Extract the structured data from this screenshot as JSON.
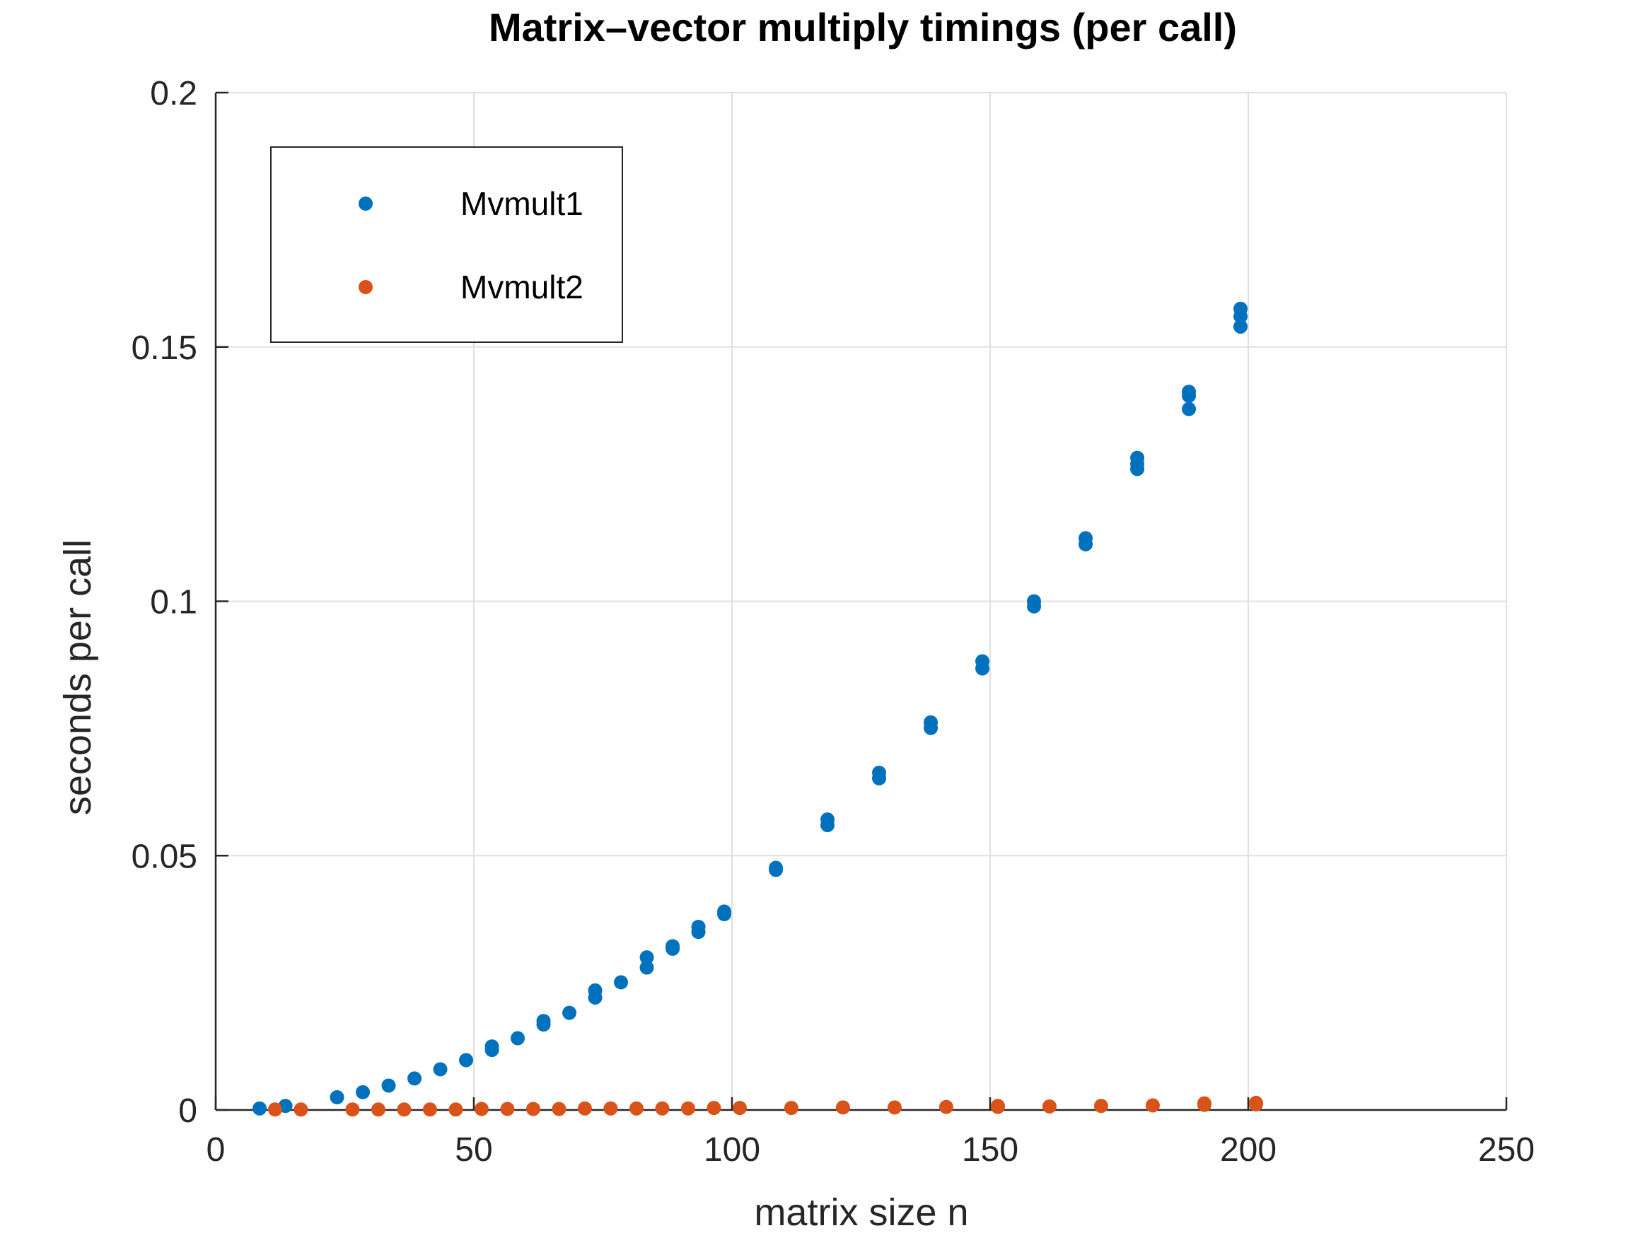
{
  "chart_data": {
    "type": "scatter",
    "title": "Matrix–vector multiply timings (per call)",
    "xlabel": "matrix size n",
    "ylabel": "seconds per call",
    "xlim": [
      0,
      250
    ],
    "ylim": [
      0,
      0.2
    ],
    "xticks": [
      0,
      50,
      100,
      150,
      200,
      250
    ],
    "xtick_labels": [
      "0",
      "50",
      "100",
      "150",
      "200",
      "250"
    ],
    "yticks": [
      0,
      0.05,
      0.1,
      0.15,
      0.2
    ],
    "ytick_labels": [
      "0",
      "0.05",
      "0.1",
      "0.15",
      "0.2"
    ],
    "grid": true,
    "legend_position": "top-left",
    "colors": {
      "axis": "#262626",
      "grid": "#e0e0e0",
      "background": "#ffffff"
    },
    "series": [
      {
        "name": "Mvmult1",
        "color": "#0072bd",
        "points": [
          [
            8.5,
            0.0003
          ],
          [
            13.5,
            0.0008
          ],
          [
            23.5,
            0.0025
          ],
          [
            28.5,
            0.0035
          ],
          [
            33.5,
            0.0048
          ],
          [
            38.5,
            0.0062
          ],
          [
            43.5,
            0.008
          ],
          [
            48.5,
            0.0098
          ],
          [
            53.5,
            0.0118
          ],
          [
            53.5,
            0.0125
          ],
          [
            58.5,
            0.0141
          ],
          [
            63.5,
            0.0168
          ],
          [
            63.5,
            0.0175
          ],
          [
            68.5,
            0.0191
          ],
          [
            73.5,
            0.0221
          ],
          [
            73.5,
            0.0235
          ],
          [
            78.5,
            0.0251
          ],
          [
            83.5,
            0.028
          ],
          [
            83.5,
            0.03
          ],
          [
            88.5,
            0.0317
          ],
          [
            88.5,
            0.0322
          ],
          [
            93.5,
            0.035
          ],
          [
            93.5,
            0.036
          ],
          [
            98.5,
            0.039
          ],
          [
            98.5,
            0.0385
          ],
          [
            108.5,
            0.0472
          ],
          [
            108.5,
            0.0476
          ],
          [
            118.5,
            0.056
          ],
          [
            118.5,
            0.0571
          ],
          [
            128.5,
            0.0652
          ],
          [
            128.5,
            0.0663
          ],
          [
            138.5,
            0.0751
          ],
          [
            138.5,
            0.0762
          ],
          [
            148.5,
            0.0868
          ],
          [
            148.5,
            0.0882
          ],
          [
            158.5,
            0.099
          ],
          [
            158.5,
            0.1
          ],
          [
            168.5,
            0.1112
          ],
          [
            168.5,
            0.1124
          ],
          [
            178.5,
            0.126
          ],
          [
            178.5,
            0.127
          ],
          [
            178.5,
            0.1282
          ],
          [
            188.5,
            0.1378
          ],
          [
            188.5,
            0.1404
          ],
          [
            188.5,
            0.1412
          ],
          [
            198.5,
            0.154
          ],
          [
            198.5,
            0.156
          ],
          [
            198.5,
            0.1575
          ]
        ]
      },
      {
        "name": "Mvmult2",
        "color": "#d95319",
        "points": [
          [
            11.5,
            0.0001
          ],
          [
            16.5,
            0.0001
          ],
          [
            26.5,
            0.0001
          ],
          [
            31.5,
            0.0001
          ],
          [
            36.5,
            0.0001
          ],
          [
            41.5,
            0.0001
          ],
          [
            46.5,
            0.0001
          ],
          [
            51.5,
            0.0002
          ],
          [
            56.5,
            0.0002
          ],
          [
            61.5,
            0.0002
          ],
          [
            66.5,
            0.0002
          ],
          [
            71.5,
            0.0003
          ],
          [
            76.5,
            0.0003
          ],
          [
            81.5,
            0.0003
          ],
          [
            86.5,
            0.0003
          ],
          [
            91.5,
            0.0003
          ],
          [
            96.5,
            0.0004
          ],
          [
            101.5,
            0.0004
          ],
          [
            111.5,
            0.0004
          ],
          [
            121.5,
            0.0005
          ],
          [
            131.5,
            0.0005
          ],
          [
            141.5,
            0.0006
          ],
          [
            151.5,
            0.0006
          ],
          [
            151.5,
            0.0008
          ],
          [
            161.5,
            0.0007
          ],
          [
            171.5,
            0.0008
          ],
          [
            181.5,
            0.0009
          ],
          [
            191.5,
            0.001
          ],
          [
            191.5,
            0.0013
          ],
          [
            201.5,
            0.0011
          ],
          [
            201.5,
            0.0014
          ]
        ]
      }
    ]
  }
}
